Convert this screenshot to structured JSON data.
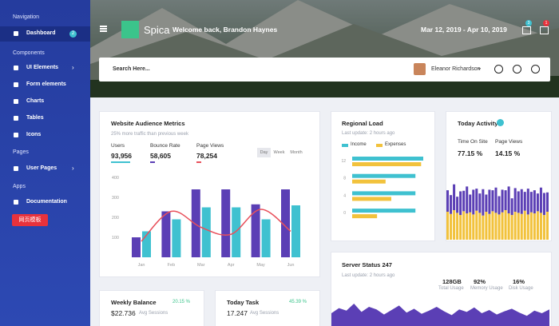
{
  "sidebar": {
    "groups": [
      {
        "heading": "Navigation",
        "items": [
          {
            "label": "Dashboard",
            "badge": 2
          }
        ]
      },
      {
        "heading": "Components",
        "items": [
          {
            "label": "UI Elements"
          },
          {
            "label": "Form elements"
          },
          {
            "label": "Charts"
          },
          {
            "label": "Tables"
          },
          {
            "label": "Icons"
          }
        ]
      },
      {
        "heading": "Pages",
        "items": [
          {
            "label": "User Pages"
          }
        ]
      },
      {
        "heading": "Apps",
        "items": [
          {
            "label": "Documentation"
          }
        ]
      }
    ],
    "button": "网页模板"
  },
  "header": {
    "brand": "Spica",
    "welcome": "Welcome back, Brandon Haynes",
    "date_range": "Mar 12, 2019 - Apr 10, 2019",
    "badges": [
      3,
      1
    ]
  },
  "search": {
    "placeholder": "Search Here...",
    "user": "Eleanor Richardson"
  },
  "audience": {
    "title": "Website Audience Metrics",
    "subtitle": "25% more traffic than previous week",
    "metrics": [
      {
        "label": "Users",
        "value": "93,956"
      },
      {
        "label": "Bounce Rate",
        "value": "58,605"
      },
      {
        "label": "Page Views",
        "value": "78,254"
      }
    ],
    "tabs": [
      "Day",
      "Week",
      "Month"
    ],
    "chart": {
      "type": "bar",
      "categories": [
        "Jan",
        "Feb",
        "Mar",
        "Apr",
        "May",
        "Jun"
      ],
      "ylim": [
        0,
        400
      ],
      "yticks": [
        100,
        200,
        300,
        400
      ],
      "series": [
        {
          "color": "#5b3fb5",
          "values": [
            100,
            230,
            340,
            340,
            265,
            340
          ]
        },
        {
          "color": "#3fc1d0",
          "values": [
            130,
            190,
            250,
            250,
            190,
            260
          ]
        }
      ],
      "line": {
        "color": "#e8505b",
        "values": [
          80,
          230,
          150,
          115,
          240,
          130
        ]
      }
    }
  },
  "regional": {
    "title": "Regional Load",
    "update": "Last update: 2 hours ago",
    "chart": {
      "type": "bar",
      "categories": [
        "12",
        "8",
        "4",
        "0"
      ],
      "xlim": [
        0,
        100
      ],
      "series": [
        {
          "name": "Income",
          "color": "#3fc1d0",
          "values": [
            100,
            89,
            89,
            89
          ]
        },
        {
          "name": "Expenses",
          "color": "#f2c23c",
          "values": [
            97,
            47,
            55,
            35
          ]
        }
      ]
    }
  },
  "activity": {
    "title": "Today Activity",
    "metrics": [
      {
        "label": "Time On Site",
        "value": "77.15 %"
      },
      {
        "label": "Page Views",
        "value": "14.15 %"
      }
    ],
    "chart": {
      "type": "bar",
      "ylim": [
        0,
        110
      ],
      "series": [
        {
          "color": "#f2c23c",
          "values": [
            52,
            48,
            55,
            50,
            46,
            53,
            49,
            51,
            47,
            54,
            50,
            45,
            52,
            48,
            53,
            50,
            47,
            51,
            55,
            49,
            46,
            52,
            50,
            48,
            54,
            47,
            51,
            49,
            53,
            50,
            46,
            52
          ]
        },
        {
          "color": "#5b3fb5",
          "values": [
            40,
            35,
            48,
            30,
            44,
            38,
            50,
            33,
            46,
            41,
            36,
            49,
            32,
            45,
            39,
            47,
            34,
            42,
            37,
            50,
            31,
            44,
            40,
            46,
            35,
            48,
            38,
            43,
            33,
            47,
            41,
            36
          ]
        }
      ]
    }
  },
  "server": {
    "title": "Server Status 247",
    "update": "Last update: 2 hours ago",
    "stats": [
      {
        "value": "128GB",
        "label": "Total Usage"
      },
      {
        "value": "92%",
        "label": "Memory Usage"
      },
      {
        "value": "16%",
        "label": "Disk Usage"
      }
    ],
    "chart": {
      "type": "area",
      "color": "#5b3fb5",
      "ylim": [
        0,
        50
      ],
      "values": [
        20,
        28,
        24,
        35,
        22,
        30,
        26,
        18,
        25,
        32,
        21,
        27,
        19,
        24,
        30,
        23,
        17,
        26,
        22,
        29,
        20,
        25,
        18,
        23,
        27,
        21,
        16,
        24,
        20,
        26
      ]
    }
  },
  "cards": [
    {
      "title": "Weekly Balance",
      "change": "20.15 %",
      "value": "$22.736",
      "note": "Avg Sessions"
    },
    {
      "title": "Today Task",
      "change": "45.39 %",
      "value": "17.247",
      "note": "Avg Sessions"
    }
  ]
}
